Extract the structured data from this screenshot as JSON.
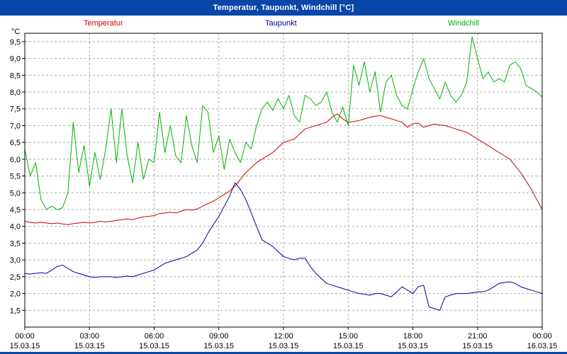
{
  "window": {
    "title": "Temperatur, Taupunkt, Windchill [°C]"
  },
  "colors": {
    "titlebar": "#0a46a8",
    "grid": "#a8a8a8",
    "axis": "#000000",
    "plot_background": "#ffffff"
  },
  "chart_data": {
    "type": "line",
    "title": "Temperatur, Taupunkt, Windchill [°C]",
    "xlabel": "",
    "ylabel": "°C",
    "ylim": [
      1.0,
      9.75
    ],
    "ytick_min": 1.5,
    "ytick_step": 0.5,
    "yticks": [
      "1,5",
      "2,0",
      "2,5",
      "3,0",
      "3,5",
      "4,0",
      "4,5",
      "5,0",
      "5,5",
      "6,0",
      "6,5",
      "7,0",
      "7,5",
      "8,0",
      "8,5",
      "9,0",
      "9,5"
    ],
    "x_range": [
      0,
      24
    ],
    "x_step_hours": 0.25,
    "grid": true,
    "legend_position": "top",
    "xticks": [
      {
        "time": "00:00",
        "date": "15.03.15",
        "hour": 0
      },
      {
        "time": "03:00",
        "date": "15.03.15",
        "hour": 3
      },
      {
        "time": "06:00",
        "date": "15.03.15",
        "hour": 6
      },
      {
        "time": "09:00",
        "date": "15.03.15",
        "hour": 9
      },
      {
        "time": "12:00",
        "date": "15.03.15",
        "hour": 12
      },
      {
        "time": "15:00",
        "date": "15.03.15",
        "hour": 15
      },
      {
        "time": "18:00",
        "date": "15.03.15",
        "hour": 18
      },
      {
        "time": "21:00",
        "date": "15.03.15",
        "hour": 21
      },
      {
        "time": "00:00",
        "date": "16.03.15",
        "hour": 24
      }
    ],
    "series": [
      {
        "name": "Temperatur",
        "color": "#cc0000",
        "values": [
          4.15,
          4.12,
          4.1,
          4.12,
          4.1,
          4.08,
          4.1,
          4.07,
          4.05,
          4.08,
          4.1,
          4.12,
          4.1,
          4.12,
          4.15,
          4.13,
          4.15,
          4.18,
          4.2,
          4.22,
          4.2,
          4.25,
          4.28,
          4.3,
          4.32,
          4.38,
          4.4,
          4.42,
          4.4,
          4.45,
          4.5,
          4.48,
          4.52,
          4.6,
          4.68,
          4.75,
          4.85,
          4.95,
          5.05,
          5.2,
          5.4,
          5.6,
          5.75,
          5.9,
          6.0,
          6.1,
          6.2,
          6.35,
          6.5,
          6.55,
          6.6,
          6.75,
          6.9,
          6.95,
          7.0,
          7.05,
          7.1,
          7.25,
          7.35,
          7.2,
          7.1,
          7.12,
          7.15,
          7.2,
          7.25,
          7.28,
          7.3,
          7.25,
          7.2,
          7.15,
          7.1,
          6.95,
          7.05,
          7.08,
          6.95,
          7.0,
          7.05,
          7.02,
          7.0,
          6.95,
          6.9,
          6.85,
          6.8,
          6.7,
          6.6,
          6.5,
          6.4,
          6.3,
          6.2,
          6.1,
          6.0,
          5.8,
          5.6,
          5.35,
          5.1,
          4.8,
          4.5
        ]
      },
      {
        "name": "Taupunkt",
        "color": "#0000a0",
        "values": [
          2.6,
          2.58,
          2.6,
          2.62,
          2.6,
          2.7,
          2.8,
          2.85,
          2.75,
          2.65,
          2.6,
          2.55,
          2.5,
          2.48,
          2.5,
          2.5,
          2.5,
          2.48,
          2.5,
          2.52,
          2.5,
          2.55,
          2.6,
          2.65,
          2.7,
          2.8,
          2.9,
          2.95,
          3.0,
          3.05,
          3.1,
          3.2,
          3.3,
          3.5,
          3.8,
          4.05,
          4.3,
          4.6,
          4.9,
          5.3,
          5.1,
          4.8,
          4.4,
          4.0,
          3.6,
          3.5,
          3.4,
          3.25,
          3.1,
          3.05,
          3.0,
          3.05,
          3.05,
          2.8,
          2.6,
          2.45,
          2.3,
          2.25,
          2.2,
          2.15,
          2.1,
          2.05,
          2.0,
          1.98,
          1.95,
          2.0,
          2.0,
          1.95,
          1.9,
          2.05,
          2.2,
          2.1,
          2.0,
          2.2,
          2.25,
          1.6,
          1.55,
          1.5,
          1.9,
          1.95,
          2.0,
          2.0,
          2.0,
          2.02,
          2.05,
          2.05,
          2.1,
          2.2,
          2.3,
          2.33,
          2.35,
          2.3,
          2.2,
          2.15,
          2.1,
          2.05,
          2.0
        ]
      },
      {
        "name": "Windchill",
        "color": "#00b400",
        "values": [
          6.3,
          5.5,
          5.9,
          4.8,
          4.5,
          4.6,
          4.5,
          4.55,
          5.0,
          7.1,
          5.6,
          6.4,
          5.2,
          6.2,
          5.4,
          6.3,
          7.5,
          5.9,
          7.5,
          6.1,
          5.3,
          6.5,
          5.4,
          6.0,
          5.9,
          7.4,
          6.2,
          7.0,
          6.1,
          5.9,
          7.3,
          6.4,
          5.9,
          7.6,
          7.4,
          6.2,
          6.7,
          5.7,
          6.6,
          6.2,
          5.9,
          6.5,
          6.3,
          7.0,
          7.5,
          7.7,
          7.45,
          7.8,
          7.5,
          7.9,
          7.3,
          7.1,
          7.9,
          7.8,
          7.6,
          7.7,
          8.0,
          7.4,
          7.1,
          7.55,
          7.0,
          8.8,
          8.2,
          8.9,
          8.0,
          8.6,
          7.4,
          8.3,
          8.5,
          7.9,
          7.6,
          7.5,
          8.1,
          8.6,
          9.0,
          8.4,
          8.1,
          7.8,
          8.3,
          7.9,
          7.7,
          7.9,
          8.3,
          9.65,
          9.0,
          8.4,
          8.6,
          8.3,
          8.4,
          8.3,
          8.8,
          8.9,
          8.7,
          8.2,
          8.1,
          8.0,
          7.85
        ]
      }
    ]
  }
}
